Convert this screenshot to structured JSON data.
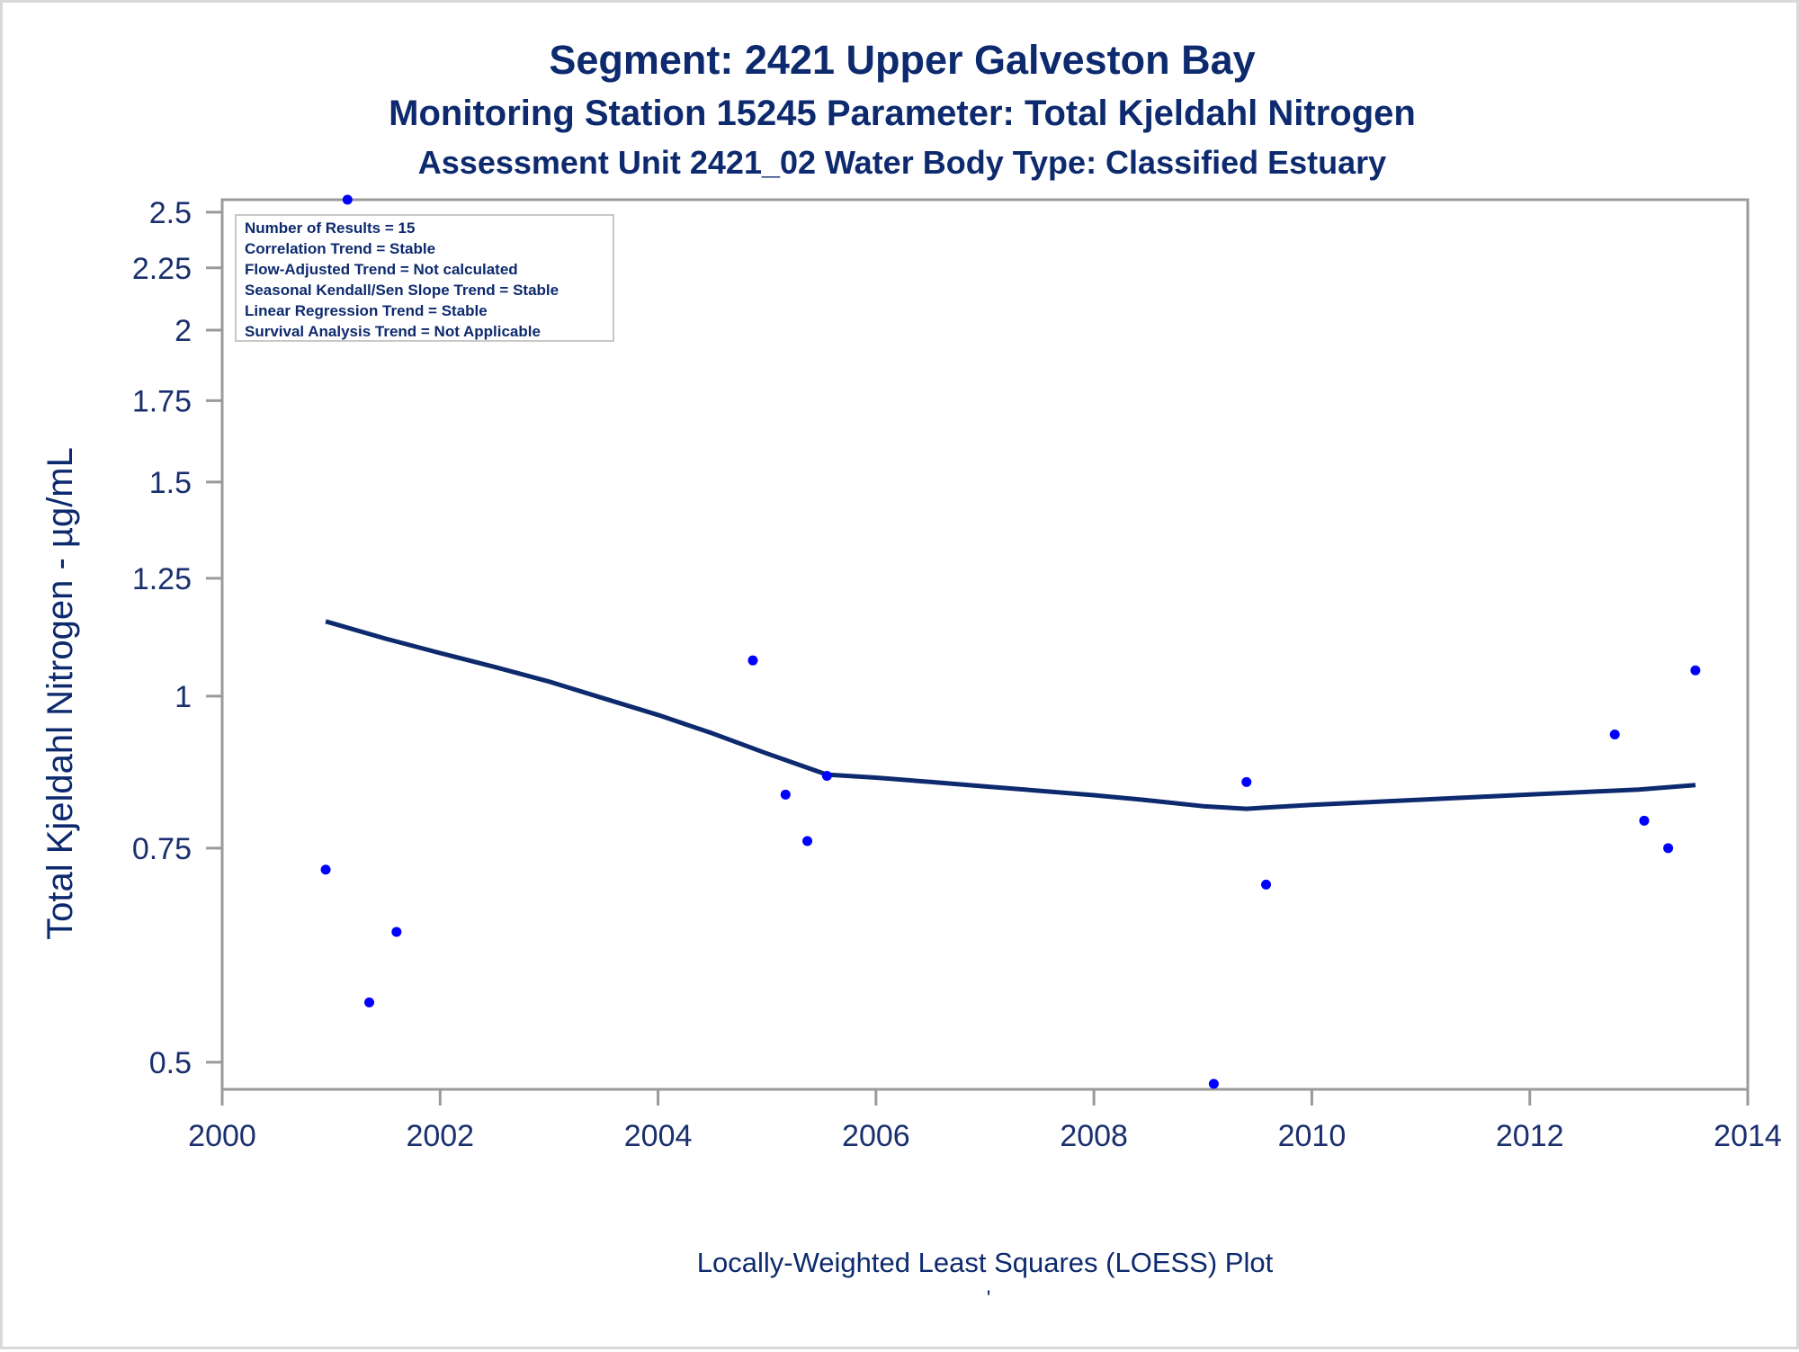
{
  "titles": {
    "line1": "Segment: 2421  Upper Galveston Bay",
    "line2": "Monitoring Station 15245 Parameter: Total Kjeldahl Nitrogen",
    "line3": "Assessment Unit 2421_02   Water Body Type: Classified Estuary"
  },
  "info_box": [
    "Number of Results = 15",
    "Correlation Trend = Stable",
    "Flow-Adjusted Trend = Not calculated",
    "Seasonal Kendall/Sen Slope Trend = Stable",
    "Linear Regression Trend = Stable",
    "Survival Analysis Trend = Not Applicable"
  ],
  "footnote": "Locally-Weighted Least Squares (LOESS) Plot",
  "footnote_mark": "'",
  "colors": {
    "points": "#0000ff",
    "loess": "#0d2a6e",
    "text": "#0d2a6e",
    "frame": "#9a9a9a"
  },
  "chart_data": {
    "type": "scatter",
    "xlabel": "",
    "ylabel": "Total Kjeldahl Nitrogen -  µg/mL",
    "xlim": [
      2000,
      2014
    ],
    "ylim": [
      0.475,
      2.56
    ],
    "yscale": "log",
    "xticks": [
      "2000",
      "2002",
      "2004",
      "2006",
      "2008",
      "2010",
      "2012",
      "2014"
    ],
    "yticks": [
      "0.5",
      "0.75",
      "1",
      "1.25",
      "1.5",
      "1.75",
      "2",
      "2.25",
      "2.5"
    ],
    "grid": false,
    "points": [
      {
        "x": 2000.95,
        "y": 0.72
      },
      {
        "x": 2001.15,
        "y": 2.56
      },
      {
        "x": 2001.35,
        "y": 0.56
      },
      {
        "x": 2001.6,
        "y": 0.64
      },
      {
        "x": 2004.87,
        "y": 1.07
      },
      {
        "x": 2005.17,
        "y": 0.83
      },
      {
        "x": 2005.37,
        "y": 0.76
      },
      {
        "x": 2005.55,
        "y": 0.86
      },
      {
        "x": 2009.1,
        "y": 0.48
      },
      {
        "x": 2009.4,
        "y": 0.85
      },
      {
        "x": 2009.58,
        "y": 0.7
      },
      {
        "x": 2012.78,
        "y": 0.93
      },
      {
        "x": 2013.05,
        "y": 0.79
      },
      {
        "x": 2013.27,
        "y": 0.75
      },
      {
        "x": 2013.52,
        "y": 1.05
      }
    ],
    "loess": {
      "x": [
        2000.95,
        2001.5,
        2002,
        2002.5,
        2003,
        2003.5,
        2004,
        2004.5,
        2005,
        2005.55,
        2006,
        2006.5,
        2007,
        2007.5,
        2008,
        2008.5,
        2009,
        2009.4,
        2009.7,
        2010,
        2010.5,
        2011,
        2011.5,
        2012,
        2012.5,
        2013,
        2013.52
      ],
      "y": [
        1.152,
        1.115,
        1.085,
        1.057,
        1.028,
        0.996,
        0.965,
        0.932,
        0.897,
        0.862,
        0.857,
        0.85,
        0.843,
        0.836,
        0.829,
        0.821,
        0.812,
        0.808,
        0.811,
        0.814,
        0.818,
        0.822,
        0.826,
        0.83,
        0.834,
        0.838,
        0.845
      ]
    }
  }
}
